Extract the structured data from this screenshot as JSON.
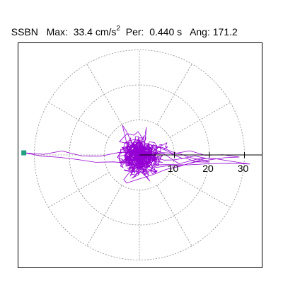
{
  "header": {
    "station": "SSBN",
    "max_label": "Max:",
    "max_value": "33.4",
    "max_unit": "cm/s",
    "max_exp": "2",
    "per_label": "Per:",
    "per_value": "0.440 s",
    "ang_label": "Ang:",
    "ang_value": "171.2"
  },
  "colors": {
    "trace": "#9400D3",
    "marker": "#20A080",
    "grid": "#8c8c8c",
    "axis": "#000000"
  },
  "chart_data": {
    "type": "scatter",
    "subtype": "polar particle-motion trace (horizontal acceleration)",
    "title": "SSBN Max: 33.4 cm/s2 Per: 0.440 s Ang: 171.2",
    "radial_ticks": [
      10,
      20,
      30
    ],
    "radial_tick_labels": [
      "10",
      "20",
      "30"
    ],
    "rings": [
      10,
      20,
      30
    ],
    "radial_range": [
      0,
      33.4
    ],
    "spokes_deg": [
      0,
      30,
      60,
      90,
      120,
      150,
      180,
      210,
      240,
      270,
      300,
      330
    ],
    "max_amplitude": 33.4,
    "max_angle_deg": 171.2,
    "grid": true,
    "legend": "none",
    "cloud_extent": {
      "x_min": -9,
      "x_max": 8,
      "y_min": -9,
      "y_max": 9
    },
    "excursions": [
      {
        "x": -33.0,
        "y": 0.6
      },
      {
        "x": 28.5,
        "y": -0.2
      },
      {
        "x": 31.5,
        "y": -2.6
      },
      {
        "x": 19.0,
        "y": -0.6
      },
      {
        "x": 20.0,
        "y": -2.4
      },
      {
        "x": 3.0,
        "y": -7.8
      },
      {
        "x": -4.8,
        "y": 8.2
      },
      {
        "x": 2.0,
        "y": 7.5
      }
    ],
    "marker_point": {
      "x": -33.0,
      "y": 0.6
    }
  }
}
